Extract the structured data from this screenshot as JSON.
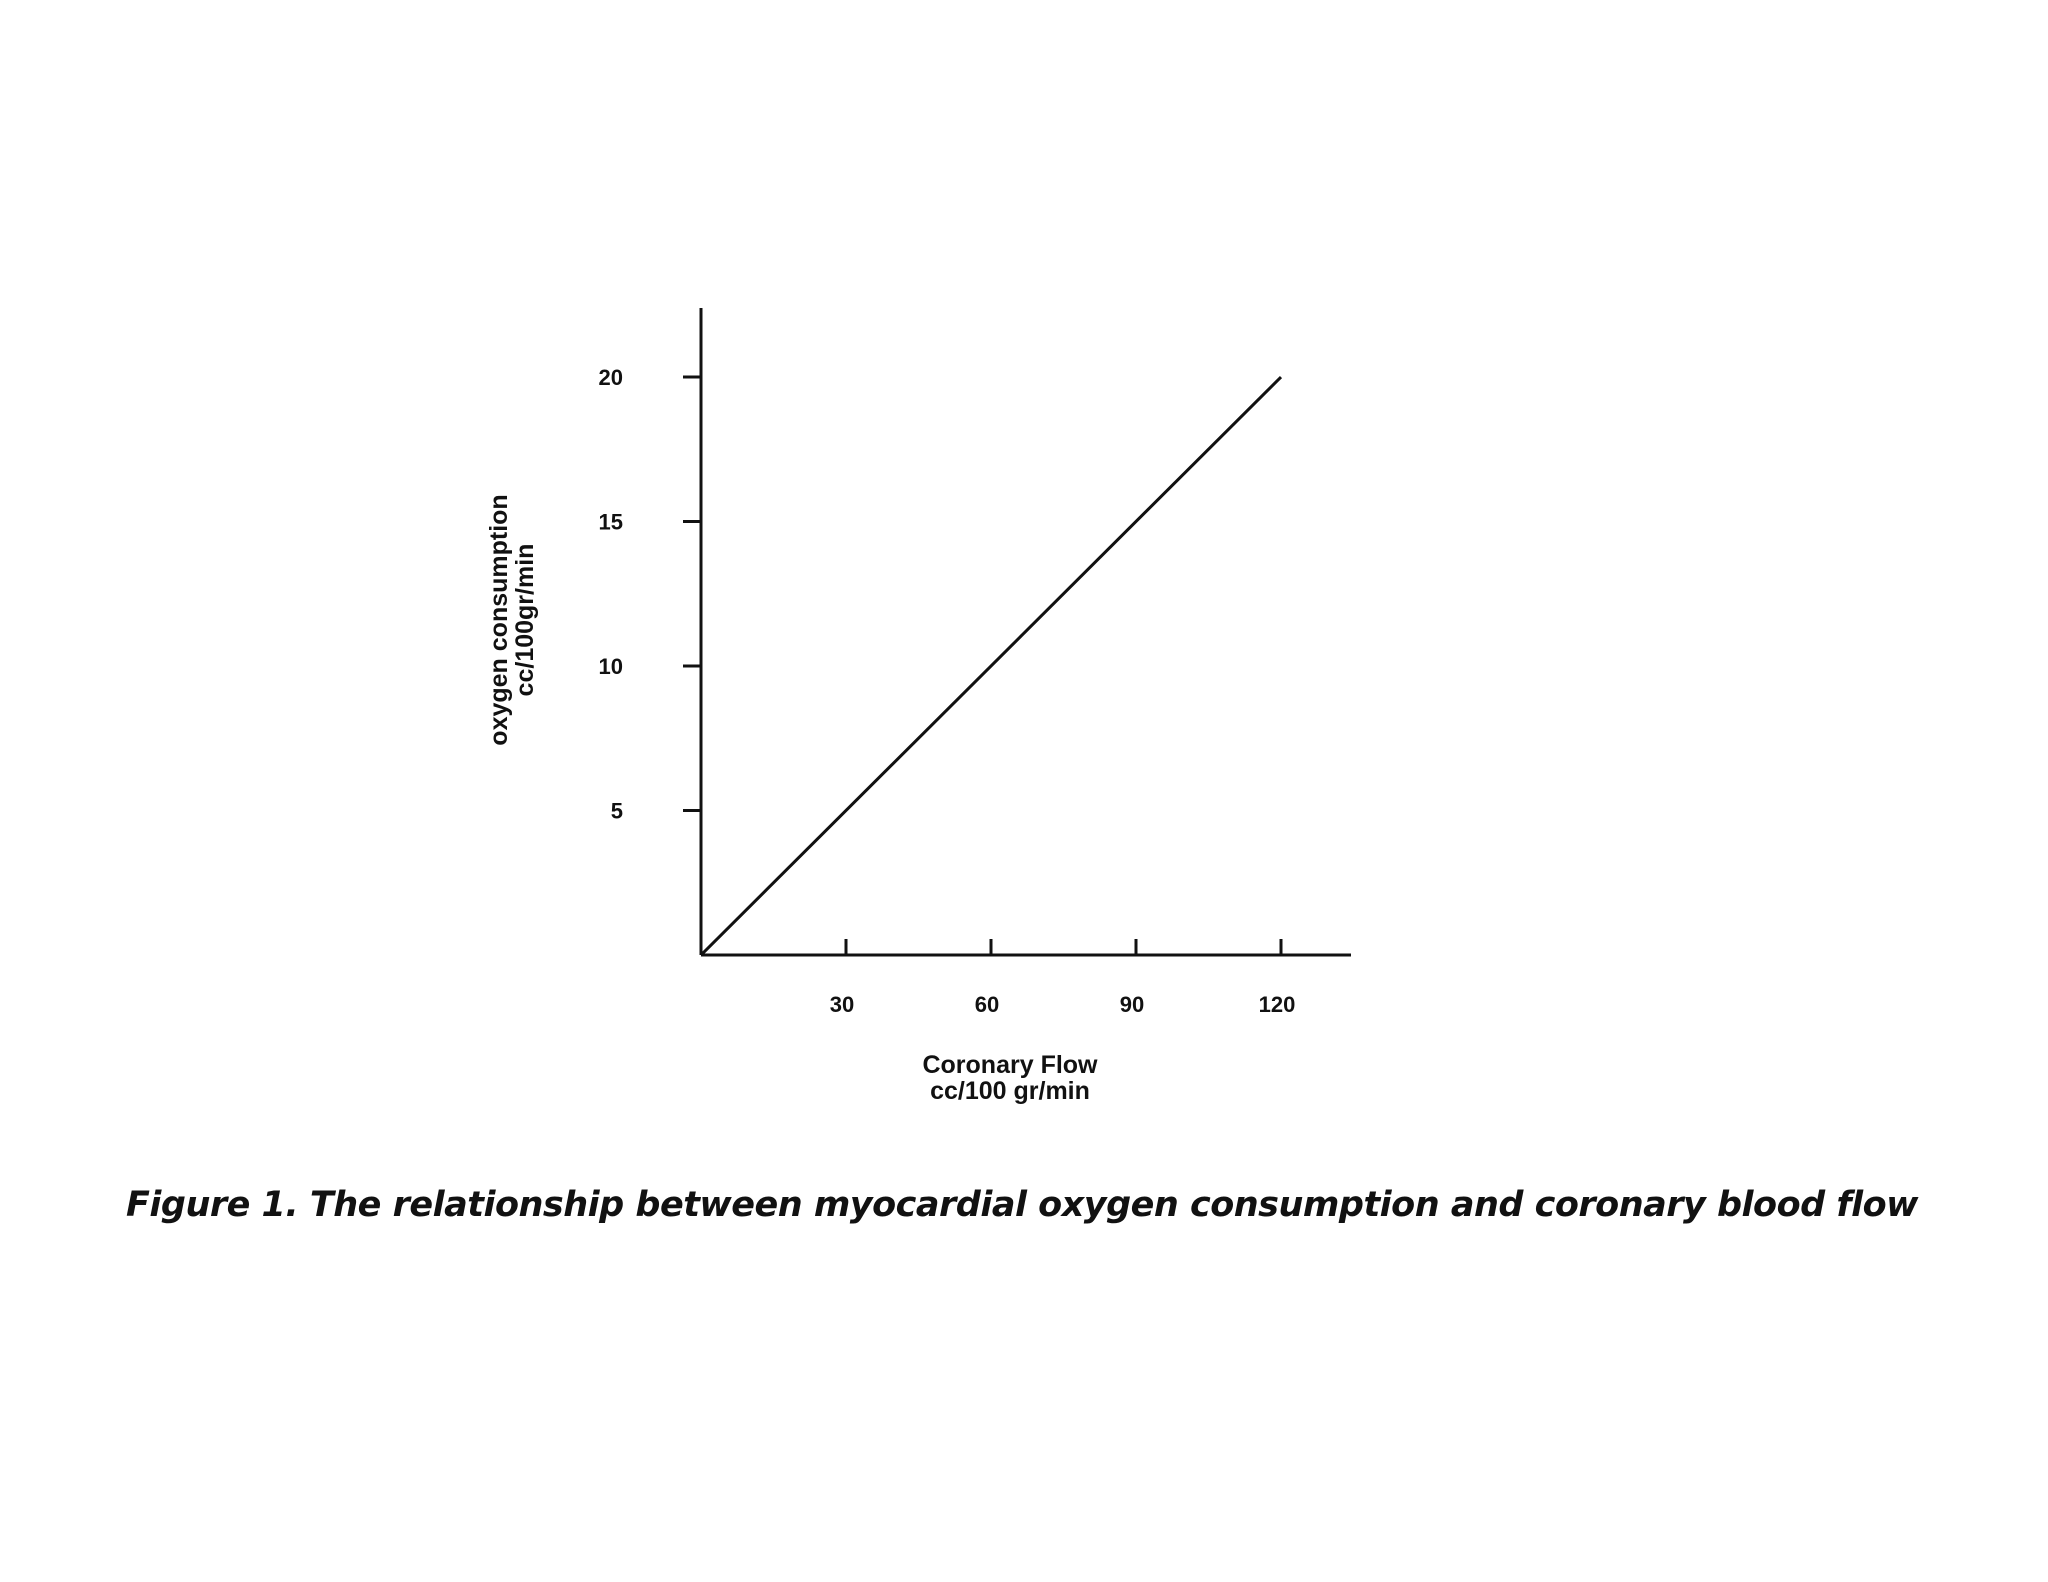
{
  "caption": "Figure 1. The relationship between myocardial oxygen consumption and coronary blood flow",
  "chart_data": {
    "type": "line",
    "xlabel_lines": [
      "Coronary Flow",
      "cc/100 gr/min"
    ],
    "ylabel_lines": [
      "oxygen consumption",
      "cc/100gr/min"
    ],
    "xticks": [
      30,
      60,
      90,
      120
    ],
    "yticks": [
      5,
      10,
      15,
      20
    ],
    "xlim": [
      0,
      135
    ],
    "ylim": [
      0,
      22.5
    ],
    "grid": false,
    "legend": "none",
    "series": [
      {
        "x": [
          0,
          120
        ],
        "y": [
          0,
          20
        ],
        "color": "#111111"
      }
    ]
  }
}
